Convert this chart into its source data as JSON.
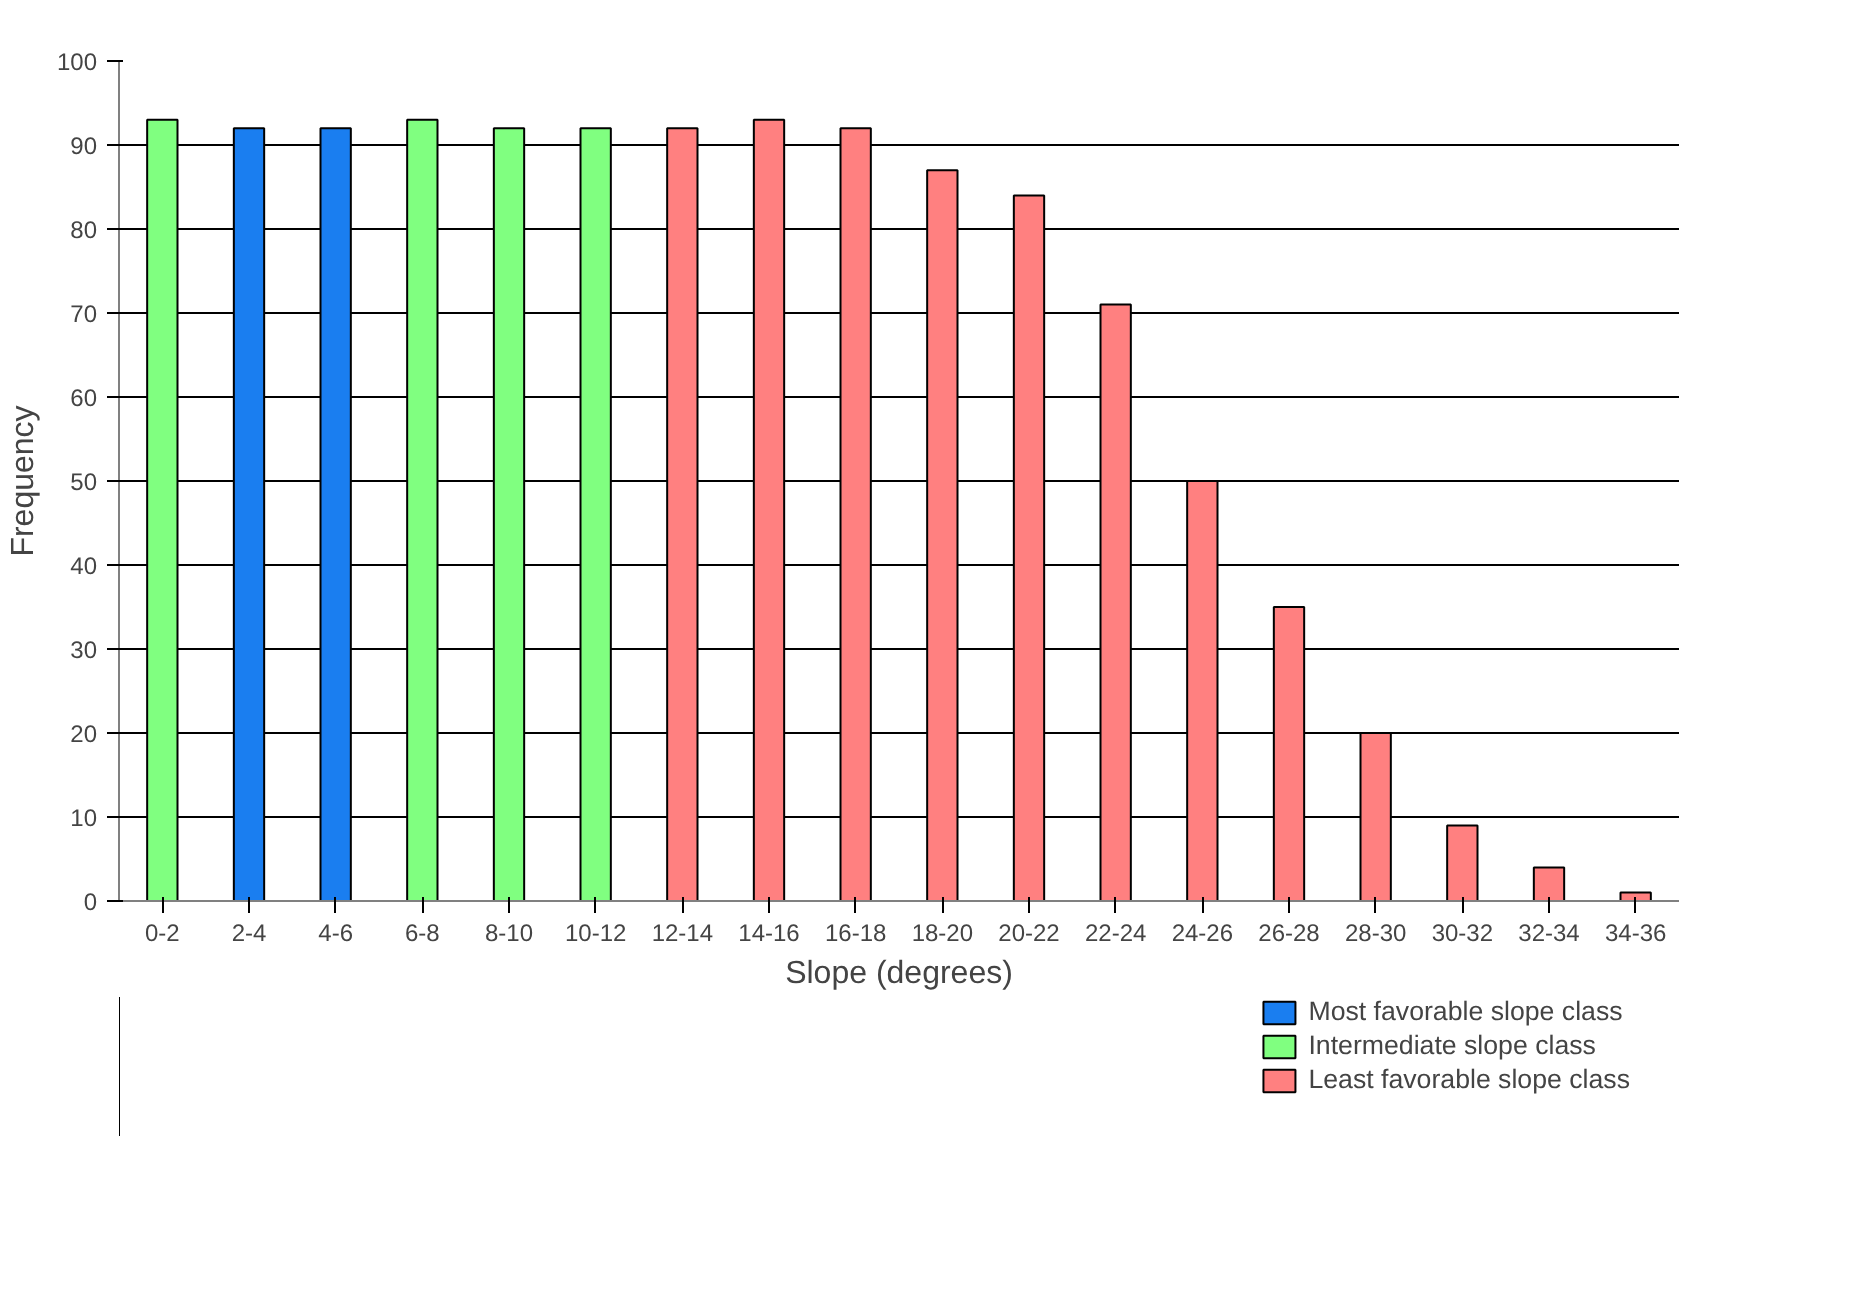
{
  "chart_data": {
    "type": "bar",
    "xlabel": "Slope (degrees)",
    "ylabel": "Frequency",
    "categories": [
      "0-2",
      "2-4",
      "4-6",
      "6-8",
      "8-10",
      "10-12",
      "12-14",
      "14-16",
      "16-18",
      "18-20",
      "20-22",
      "22-24",
      "24-26",
      "26-28",
      "28-30",
      "30-32",
      "32-34",
      "34-36"
    ],
    "series": [
      {
        "name": "Most favorable slope class",
        "color": "#1a7ef0",
        "values": [
          null,
          92,
          92,
          null,
          null,
          null,
          null,
          null,
          null,
          null,
          null,
          null,
          null,
          null,
          null,
          null,
          null,
          null
        ]
      },
      {
        "name": "Intermediate slope class",
        "color": "#80ff80",
        "values": [
          93,
          null,
          null,
          93,
          92,
          92,
          null,
          null,
          null,
          null,
          null,
          null,
          null,
          null,
          null,
          null,
          null,
          null
        ]
      },
      {
        "name": "Least favorable slope class",
        "color": "#ff8080",
        "values": [
          null,
          null,
          null,
          null,
          null,
          null,
          92,
          93,
          92,
          87,
          84,
          71,
          50,
          35,
          20,
          9,
          4,
          1
        ]
      }
    ],
    "ylim": [
      0,
      100
    ],
    "yticks": [
      0,
      10,
      20,
      30,
      40,
      50,
      60,
      70,
      80,
      90,
      100
    ],
    "grid": "y",
    "legend": "bottom right"
  }
}
